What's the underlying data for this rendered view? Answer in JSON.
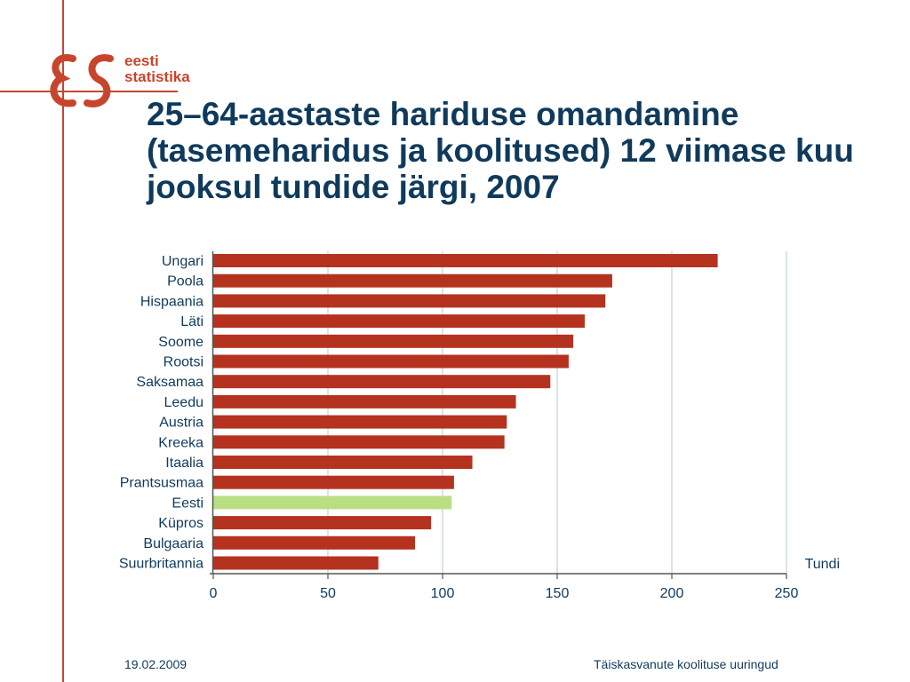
{
  "logo": {
    "mark": "ES",
    "line1": "eesti",
    "line2": "statistika",
    "color": "#c8452d"
  },
  "title": "25–64-aastaste hariduse omandamine (tasemeharidus ja koolitused) 12 viimase kuu jooksul tundide järgi, 2007",
  "footer": {
    "date": "19.02.2009",
    "title": "Täiskasvanute koolituse uuringud"
  },
  "chart_data": {
    "type": "bar",
    "orientation": "horizontal",
    "categories": [
      "Ungari",
      "Poola",
      "Hispaania",
      "Läti",
      "Soome",
      "Rootsi",
      "Saksamaa",
      "Leedu",
      "Austria",
      "Kreeka",
      "Itaalia",
      "Prantsusmaa",
      "Eesti",
      "Küpros",
      "Bulgaaria",
      "Suurbritannia"
    ],
    "values": [
      220,
      174,
      171,
      162,
      157,
      155,
      147,
      132,
      128,
      127,
      113,
      105,
      104,
      95,
      88,
      72
    ],
    "highlight": "Eesti",
    "xlim": [
      0,
      250
    ],
    "xticks": [
      0,
      50,
      100,
      150,
      200,
      250
    ],
    "xlabel": "Tundi",
    "grid": true,
    "colors": {
      "bar": "#b5321f",
      "highlight": "#b9df82",
      "grid": "#b8c8cc",
      "axis": "#555555"
    }
  }
}
